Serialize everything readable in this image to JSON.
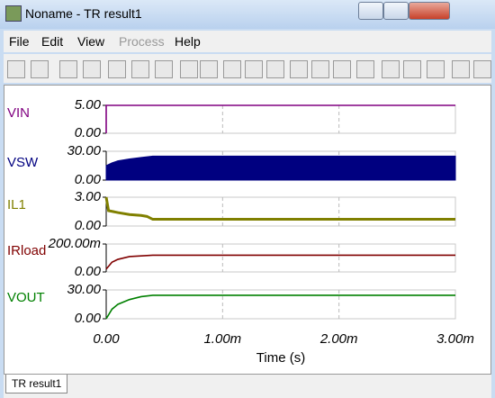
{
  "window": {
    "title": "Noname - TR result1"
  },
  "menu": [
    "File",
    "Edit",
    "View",
    "Process",
    "Help"
  ],
  "tab": "TR result1",
  "x_axis": {
    "label": "Time (s)",
    "xlim": [
      0,
      0.003
    ],
    "xticks": [
      {
        "value": 0,
        "label": "0.00"
      },
      {
        "value": 0.001,
        "label": "1.00m"
      },
      {
        "value": 0.002,
        "label": "2.00m"
      },
      {
        "value": 0.003,
        "label": "3.00m"
      }
    ]
  },
  "chart_data": [
    {
      "type": "line",
      "x": [
        0,
        0,
        0.003
      ],
      "series": [
        {
          "name": "VIN",
          "color": "#800080",
          "values": [
            0,
            5,
            5
          ]
        }
      ],
      "ylim": [
        0,
        5
      ],
      "yticks": [
        {
          "value": 0,
          "label": "0.00"
        },
        {
          "value": 5,
          "label": "5.00"
        }
      ]
    },
    {
      "type": "area",
      "x": [
        0,
        5e-05,
        0.0001,
        0.0002,
        0.0003,
        0.0004,
        0.003
      ],
      "series": [
        {
          "name": "VSW",
          "color": "#000080",
          "values": [
            15,
            18,
            20,
            22,
            23.5,
            25,
            25
          ]
        }
      ],
      "ylim": [
        0,
        30
      ],
      "yticks": [
        {
          "value": 0,
          "label": "0.00"
        },
        {
          "value": 30,
          "label": "30.00"
        }
      ]
    },
    {
      "type": "line",
      "x": [
        0,
        2e-05,
        0.0001,
        0.0002,
        0.0003,
        0.00035,
        0.0004,
        0.003
      ],
      "series": [
        {
          "name": "IL1",
          "color": "#808000",
          "values": [
            3,
            1.6,
            1.4,
            1.2,
            1.1,
            1.0,
            0.7,
            0.7
          ]
        }
      ],
      "ylim": [
        0,
        3
      ],
      "yticks": [
        {
          "value": 0,
          "label": "0.00"
        },
        {
          "value": 3,
          "label": "3.00"
        }
      ]
    },
    {
      "type": "line",
      "x": [
        0,
        5e-05,
        0.0001,
        0.0002,
        0.0003,
        0.0004,
        0.003
      ],
      "series": [
        {
          "name": "IRload",
          "color": "#800000",
          "values": [
            0.02,
            0.07,
            0.09,
            0.11,
            0.115,
            0.12,
            0.12
          ]
        }
      ],
      "ylim": [
        0,
        0.2
      ],
      "yticks": [
        {
          "value": 0,
          "label": "0.00"
        },
        {
          "value": 0.2,
          "label": "200.00m"
        }
      ]
    },
    {
      "type": "line",
      "x": [
        0,
        5e-05,
        0.0001,
        0.0002,
        0.0003,
        0.0004,
        0.003
      ],
      "series": [
        {
          "name": "VOUT",
          "color": "#008000",
          "values": [
            0,
            10,
            15,
            20,
            23,
            24.4,
            24.4
          ]
        }
      ],
      "ylim": [
        0,
        30
      ],
      "yticks": [
        {
          "value": 0,
          "label": "0.00"
        },
        {
          "value": 30,
          "label": "30.00"
        }
      ]
    }
  ]
}
